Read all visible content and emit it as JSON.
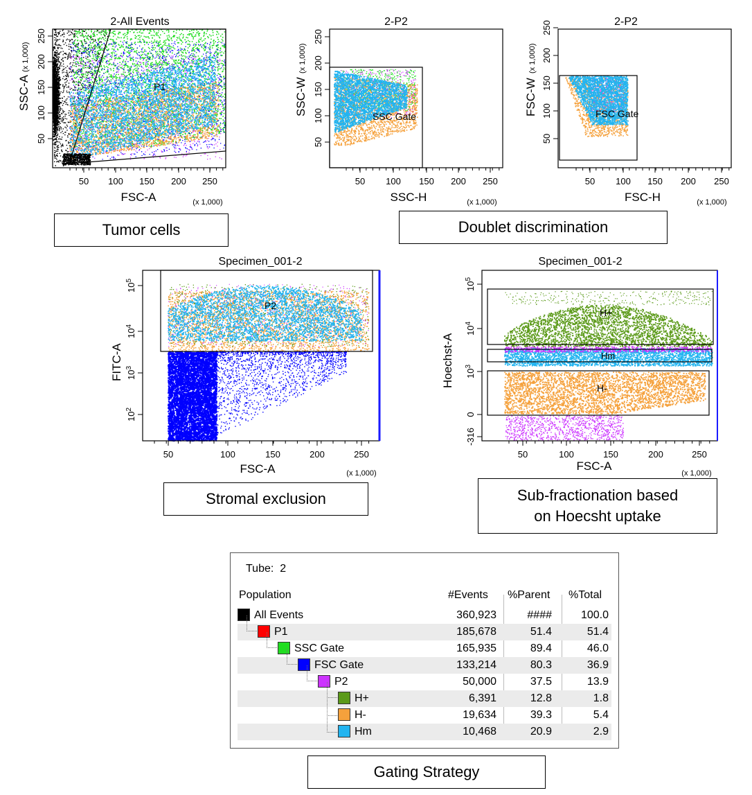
{
  "plots": [
    {
      "id": "p1",
      "title": "2-All Events",
      "xlabel": "FSC-A",
      "ylabel": "SSC-A",
      "ylabel_suffix": "(x 1,000)",
      "xunit": "(x 1,000)",
      "xticks": [
        "50",
        "100",
        "150",
        "200",
        "250"
      ],
      "yticks": [
        "50",
        "100",
        "150",
        "200",
        "250"
      ],
      "gates": [
        {
          "label": "P1"
        }
      ]
    },
    {
      "id": "p2",
      "title": "2-P2",
      "xlabel": "SSC-H",
      "ylabel": "SSC-W",
      "ylabel_suffix": "(x 1,000)",
      "xunit": "(x 1,000)",
      "xticks": [
        "50",
        "100",
        "150",
        "200",
        "250"
      ],
      "yticks": [
        "50",
        "100",
        "150",
        "200",
        "250"
      ],
      "gates": [
        {
          "label": "SSC Gate"
        }
      ]
    },
    {
      "id": "p3",
      "title": "2-P2",
      "xlabel": "FSC-H",
      "ylabel": "FSC-W",
      "ylabel_suffix": "(x 1,000)",
      "xunit": "(x 1,000)",
      "xticks": [
        "50",
        "100",
        "150",
        "200",
        "250"
      ],
      "yticks": [
        "50",
        "100",
        "150",
        "200",
        "250"
      ],
      "gates": [
        {
          "label": "FSC Gate"
        }
      ]
    },
    {
      "id": "p4",
      "title": "Specimen_001-2",
      "xlabel": "FSC-A",
      "ylabel": "FITC-A",
      "xunit": "(x 1,000)",
      "xticks": [
        "50",
        "100",
        "150",
        "200",
        "250"
      ],
      "yticks": [
        "2",
        "3",
        "4",
        "5"
      ],
      "ytick_base": "10",
      "gates": [
        {
          "label": "P2"
        }
      ]
    },
    {
      "id": "p5",
      "title": "Specimen_001-2",
      "xlabel": "FSC-A",
      "ylabel": "Hoechst-A",
      "xunit": "(x 1,000)",
      "xticks": [
        "50",
        "100",
        "150",
        "200",
        "250"
      ],
      "yticks_plain": [
        "-316",
        "0"
      ],
      "yticks": [
        "3",
        "4",
        "5"
      ],
      "ytick_base": "10",
      "gates": [
        {
          "label": "H+"
        },
        {
          "label": "Hm"
        },
        {
          "label": "H-"
        }
      ]
    }
  ],
  "captions": {
    "tumor": "Tumor cells",
    "doublet": "Doublet discrimination",
    "stromal": "Stromal exclusion",
    "subfrac_line1": "Sub-fractionation based",
    "subfrac_line2": "on Hoecsht uptake",
    "gating": "Gating Strategy"
  },
  "colors": {
    "all_events": "#000000",
    "p1": "#ff0000",
    "ssc_gate": "#22dd22",
    "fsc_gate": "#0000ff",
    "p2": "#cc33ff",
    "h_plus": "#5b9a19",
    "h_minus": "#f5a13c",
    "hm": "#22b4f0"
  },
  "chart_data": {
    "type": "table",
    "tube_label": "Tube:",
    "tube": "2",
    "columns": [
      "Population",
      "#Events",
      "%Parent",
      "%Total"
    ],
    "rows": [
      {
        "population": "All Events",
        "events": "360,923",
        "parent": "####",
        "total": "100.0",
        "color": "#000000",
        "level": 0
      },
      {
        "population": "P1",
        "events": "185,678",
        "parent": "51.4",
        "total": "51.4",
        "color": "#ff0000",
        "level": 1
      },
      {
        "population": "SSC Gate",
        "events": "165,935",
        "parent": "89.4",
        "total": "46.0",
        "color": "#22dd22",
        "level": 2
      },
      {
        "population": "FSC Gate",
        "events": "133,214",
        "parent": "80.3",
        "total": "36.9",
        "color": "#0000ff",
        "level": 3
      },
      {
        "population": "P2",
        "events": "50,000",
        "parent": "37.5",
        "total": "13.9",
        "color": "#cc33ff",
        "level": 4
      },
      {
        "population": "H+",
        "events": "6,391",
        "parent": "12.8",
        "total": "1.8",
        "color": "#5b9a19",
        "level": 5
      },
      {
        "population": "H-",
        "events": "19,634",
        "parent": "39.3",
        "total": "5.4",
        "color": "#f5a13c",
        "level": 5
      },
      {
        "population": "Hm",
        "events": "10,468",
        "parent": "20.9",
        "total": "2.9",
        "color": "#22b4f0",
        "level": 5
      }
    ]
  }
}
